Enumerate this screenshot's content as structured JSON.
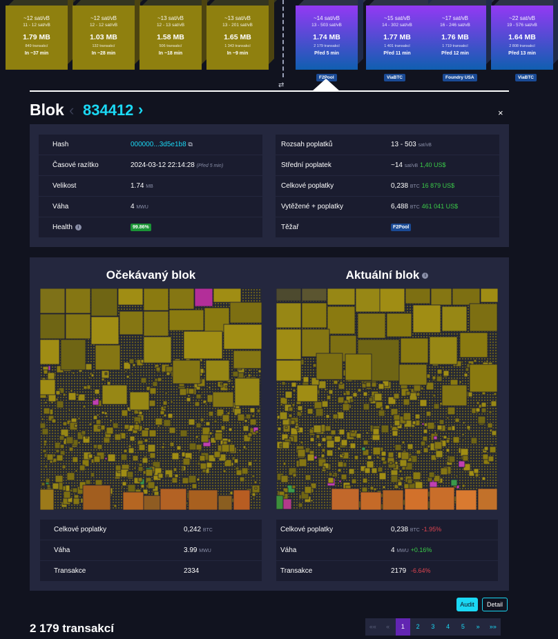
{
  "pending_blocks": [
    {
      "fee": "~12 sat/vB",
      "range": "11 - 12 sat/vB",
      "size": "1.79 MB",
      "txs": "849 transakcí",
      "eta": "In ~37 min"
    },
    {
      "fee": "~12 sat/vB",
      "range": "12 - 12 sat/vB",
      "size": "1.03 MB",
      "txs": "132 transakcí",
      "eta": "In ~28 min"
    },
    {
      "fee": "~13 sat/vB",
      "range": "12 - 13 sat/vB",
      "size": "1.58 MB",
      "txs": "506 transakcí",
      "eta": "In ~18 min"
    },
    {
      "fee": "~13 sat/vB",
      "range": "13 - 201 sat/vB",
      "size": "1.65 MB",
      "txs": "1 343 transakcí",
      "eta": "In ~9 min"
    }
  ],
  "mined_blocks": [
    {
      "fee": "~14 sat/vB",
      "range": "13 - 503 sat/vB",
      "size": "1.74 MB",
      "txs": "2 179 transakcí",
      "eta": "Před 5 min",
      "pool": "F2Pool"
    },
    {
      "fee": "~15 sat/vB",
      "range": "14 - 302 sat/vB",
      "size": "1.77 MB",
      "txs": "1 401 transakcí",
      "eta": "Před 11 min",
      "pool": "ViaBTC"
    },
    {
      "fee": "~17 sat/vB",
      "range": "16 - 246 sat/vB",
      "size": "1.76 MB",
      "txs": "1 719 transakcí",
      "eta": "Před 12 min",
      "pool": "Foundry USA"
    },
    {
      "fee": "~22 sat/vB",
      "range": "19 - 576 sat/vB",
      "size": "1.64 MB",
      "txs": "2 808 transakcí",
      "eta": "Před 13 min",
      "pool": "ViaBTC"
    }
  ],
  "header": {
    "title": "Blok",
    "height": "834412",
    "prev": "‹",
    "next": "›",
    "close": "×"
  },
  "info": {
    "hash_label": "Hash",
    "hash_value": "000000...3d5e1b8",
    "copy_icon": "copy-icon",
    "timestamp_label": "Časové razítko",
    "timestamp_value": "2024-03-12 22:14:28",
    "timestamp_ago": "(Před 5 min)",
    "size_label": "Velikost",
    "size_value": "1.74",
    "size_unit": "MB",
    "weight_label": "Váha",
    "weight_value": "4",
    "weight_unit": "MWU",
    "health_label": "Health",
    "health_value": "99.86%",
    "fee_range_label": "Rozsah poplatků",
    "fee_range_value": "13 - 503",
    "fee_range_unit": "sat/vB",
    "median_fee_label": "Střední poplatek",
    "median_fee_value": "~14",
    "median_fee_unit": "sat/vB",
    "median_fee_usd": "1,40 US$",
    "total_fees_label": "Celkové poplatky",
    "total_fees_value": "0,238",
    "total_fees_unit": "BTC",
    "total_fees_usd": "16 879 US$",
    "reward_label": "Vytěžené + poplatky",
    "reward_value": "6,488",
    "reward_unit": "BTC",
    "reward_usd": "461 041 US$",
    "miner_label": "Těžař",
    "miner_value": "F2Pool"
  },
  "audit": {
    "expected_title": "Očekávaný blok",
    "actual_title": "Aktuální blok",
    "expected": {
      "fees_label": "Celkové poplatky",
      "fees_value": "0,242",
      "fees_unit": "BTC",
      "weight_label": "Váha",
      "weight_value": "3.99",
      "weight_unit": "MWU",
      "tx_label": "Transakce",
      "tx_value": "2334"
    },
    "actual": {
      "fees_label": "Celkové poplatky",
      "fees_value": "0,238",
      "fees_unit": "BTC",
      "fees_delta": "-1.95%",
      "weight_label": "Váha",
      "weight_value": "4",
      "weight_unit": "MWU",
      "weight_delta": "+0.16%",
      "tx_label": "Transakce",
      "tx_value": "2179",
      "tx_delta": "-6.64%"
    }
  },
  "buttons": {
    "audit": "Audit",
    "detail": "Detail"
  },
  "footer": {
    "tx_count": "2 179 transakcí"
  },
  "pager": {
    "items": [
      "««",
      "«",
      "1",
      "2",
      "3",
      "4",
      "5",
      "»",
      "»»"
    ],
    "active": "1"
  },
  "colors": {
    "accent": "#1bd8f4",
    "pending_block": "#8f800f",
    "mined_top": "#9339f4",
    "mined_bottom": "#105fb0",
    "panel": "#24273e",
    "row": "#1a1c2f",
    "positive": "#3bcc49",
    "negative": "#e04550"
  }
}
